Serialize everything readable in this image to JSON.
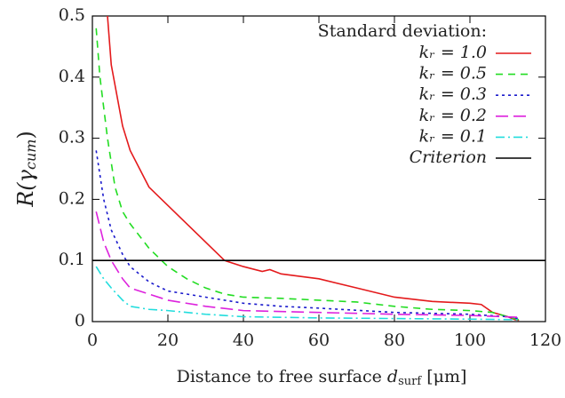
{
  "chart_data": {
    "type": "line",
    "x_label": {
      "main": "Distance to free surface ",
      "var": "d",
      "sub": "surf",
      "unit": " [μm]"
    },
    "y_label": {
      "main": "R(γ",
      "sub": "cum",
      "close": ")"
    },
    "legend_title": "Standard deviation:",
    "legend": "upper right",
    "xlim": [
      0,
      120
    ],
    "xticks": [
      0,
      20,
      40,
      60,
      80,
      100,
      120
    ],
    "ylim": [
      0,
      0.5
    ],
    "yticks": [
      0,
      0.1,
      0.2,
      0.3,
      0.4,
      0.5
    ],
    "series": [
      {
        "name": "kᵣ = 1.0",
        "color": "#e41a1c",
        "dash": "none",
        "x": [
          4,
          5,
          8,
          10,
          15,
          20,
          25,
          30,
          35,
          40,
          45,
          47,
          50,
          60,
          70,
          80,
          90,
          100,
          103,
          106,
          110,
          112,
          113
        ],
        "values": [
          0.5,
          0.42,
          0.32,
          0.28,
          0.22,
          0.19,
          0.16,
          0.13,
          0.1,
          0.09,
          0.082,
          0.085,
          0.078,
          0.07,
          0.055,
          0.04,
          0.033,
          0.03,
          0.028,
          0.015,
          0.008,
          0.003,
          0.002
        ]
      },
      {
        "name": "kᵣ = 0.5",
        "color": "#22dd22",
        "dash": "8,6",
        "x": [
          1,
          2,
          4,
          6,
          8,
          10,
          15,
          20,
          25,
          30,
          35,
          40,
          50,
          60,
          70,
          80,
          90,
          100,
          106,
          110,
          113
        ],
        "values": [
          0.48,
          0.4,
          0.3,
          0.22,
          0.18,
          0.16,
          0.12,
          0.09,
          0.07,
          0.055,
          0.045,
          0.04,
          0.038,
          0.035,
          0.032,
          0.025,
          0.02,
          0.018,
          0.015,
          0.008,
          0.003
        ]
      },
      {
        "name": "kᵣ = 0.3",
        "color": "#1a1acc",
        "dash": "3,4",
        "x": [
          1,
          3,
          5,
          8,
          10,
          15,
          20,
          30,
          40,
          50,
          60,
          80,
          100,
          110,
          113
        ],
        "values": [
          0.28,
          0.2,
          0.15,
          0.11,
          0.09,
          0.065,
          0.05,
          0.04,
          0.03,
          0.025,
          0.022,
          0.015,
          0.012,
          0.008,
          0.005
        ]
      },
      {
        "name": "kᵣ = 0.2",
        "color": "#dd22dd",
        "dash": "14,6",
        "x": [
          1,
          3,
          5,
          8,
          10,
          15,
          20,
          30,
          40,
          60,
          80,
          100,
          113
        ],
        "values": [
          0.18,
          0.13,
          0.1,
          0.07,
          0.055,
          0.045,
          0.035,
          0.025,
          0.018,
          0.015,
          0.012,
          0.01,
          0.007
        ]
      },
      {
        "name": "kᵣ = 0.1",
        "color": "#22dddd",
        "dash": "10,4,2,4",
        "x": [
          1,
          3,
          5,
          8,
          10,
          15,
          20,
          30,
          40,
          60,
          80,
          100,
          113
        ],
        "values": [
          0.09,
          0.07,
          0.055,
          0.035,
          0.025,
          0.02,
          0.018,
          0.012,
          0.008,
          0.006,
          0.005,
          0.004,
          0.003
        ]
      },
      {
        "name": "Criterion",
        "color": "#000000",
        "dash": "none",
        "x": [
          0,
          120
        ],
        "values": [
          0.1,
          0.1
        ]
      }
    ]
  }
}
